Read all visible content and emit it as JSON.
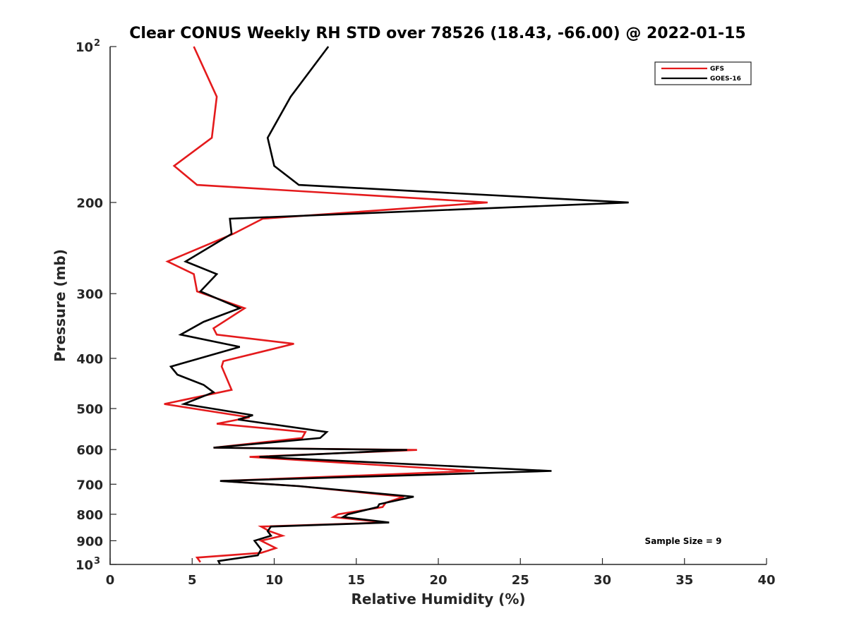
{
  "chart_data": {
    "type": "line",
    "title": "Clear CONUS Weekly RH STD over 78526 (18.43, -66.00) @ 2022-01-15",
    "xlabel": "Relative Humidity (%)",
    "ylabel": "Pressure (mb)",
    "xlim": [
      0,
      40
    ],
    "ylim": [
      100,
      1000
    ],
    "y_scale": "log",
    "y_reversed": true,
    "grid": false,
    "legend_position": "top-right",
    "x_ticks": [
      "0",
      "5",
      "10",
      "15",
      "20",
      "25",
      "30",
      "35",
      "40"
    ],
    "y_ticks": [
      {
        "value": 100,
        "base": "10",
        "exp": "2"
      },
      {
        "value": 200,
        "label": "200"
      },
      {
        "value": 300,
        "label": "300"
      },
      {
        "value": 400,
        "label": "400"
      },
      {
        "value": 500,
        "label": "500"
      },
      {
        "value": 600,
        "label": "600"
      },
      {
        "value": 700,
        "label": "700"
      },
      {
        "value": 800,
        "label": "800"
      },
      {
        "value": 900,
        "label": "900"
      },
      {
        "value": 1000,
        "base": "10",
        "exp": "3"
      }
    ],
    "series": [
      {
        "name": "GFS",
        "color": "#e41a1c",
        "points": [
          [
            5.1,
            100
          ],
          [
            6.5,
            125
          ],
          [
            6.2,
            150
          ],
          [
            3.9,
            170
          ],
          [
            5.3,
            185
          ],
          [
            23.0,
            200
          ],
          [
            9.3,
            215
          ],
          [
            7.5,
            230
          ],
          [
            3.5,
            260
          ],
          [
            5.1,
            275
          ],
          [
            5.3,
            297
          ],
          [
            8.2,
            320
          ],
          [
            6.3,
            350
          ],
          [
            6.5,
            360
          ],
          [
            11.2,
            375
          ],
          [
            6.9,
            405
          ],
          [
            6.8,
            415
          ],
          [
            7.4,
            460
          ],
          [
            3.3,
            490
          ],
          [
            8.5,
            520
          ],
          [
            6.5,
            535
          ],
          [
            11.9,
            555
          ],
          [
            11.7,
            570
          ],
          [
            6.3,
            595
          ],
          [
            18.7,
            601
          ],
          [
            8.5,
            620
          ],
          [
            22.2,
            660
          ],
          [
            6.8,
            690
          ],
          [
            11.5,
            706
          ],
          [
            17.9,
            740
          ],
          [
            16.8,
            760
          ],
          [
            16.6,
            775
          ],
          [
            13.9,
            800
          ],
          [
            13.6,
            810
          ],
          [
            16.8,
            830
          ],
          [
            9.2,
            845
          ],
          [
            9.7,
            862
          ],
          [
            10.5,
            880
          ],
          [
            9.2,
            900
          ],
          [
            10.1,
            930
          ],
          [
            9.2,
            950
          ],
          [
            5.3,
            970
          ],
          [
            5.5,
            990
          ]
        ]
      },
      {
        "name": "GOES-16",
        "color": "#000000",
        "points": [
          [
            13.3,
            100
          ],
          [
            11.0,
            125
          ],
          [
            9.6,
            150
          ],
          [
            10.0,
            170
          ],
          [
            11.5,
            185
          ],
          [
            31.6,
            200
          ],
          [
            7.3,
            215
          ],
          [
            7.4,
            230
          ],
          [
            4.6,
            260
          ],
          [
            6.5,
            275
          ],
          [
            5.5,
            297
          ],
          [
            7.9,
            320
          ],
          [
            5.7,
            340
          ],
          [
            4.3,
            360
          ],
          [
            7.9,
            380
          ],
          [
            3.7,
            415
          ],
          [
            4.1,
            430
          ],
          [
            5.7,
            450
          ],
          [
            6.3,
            465
          ],
          [
            4.5,
            490
          ],
          [
            8.7,
            515
          ],
          [
            7.8,
            525
          ],
          [
            13.2,
            555
          ],
          [
            12.8,
            570
          ],
          [
            6.3,
            595
          ],
          [
            18.1,
            601
          ],
          [
            9.1,
            620
          ],
          [
            26.9,
            660
          ],
          [
            6.7,
            690
          ],
          [
            11.5,
            706
          ],
          [
            18.5,
            740
          ],
          [
            16.4,
            765
          ],
          [
            16.3,
            775
          ],
          [
            14.5,
            800
          ],
          [
            14.2,
            810
          ],
          [
            17.0,
            830
          ],
          [
            9.8,
            845
          ],
          [
            9.6,
            862
          ],
          [
            9.8,
            880
          ],
          [
            8.8,
            900
          ],
          [
            9.2,
            935
          ],
          [
            9.0,
            960
          ],
          [
            6.6,
            985
          ],
          [
            6.7,
            1000
          ]
        ]
      }
    ],
    "annotations": [
      "Sample Size = 9"
    ]
  }
}
